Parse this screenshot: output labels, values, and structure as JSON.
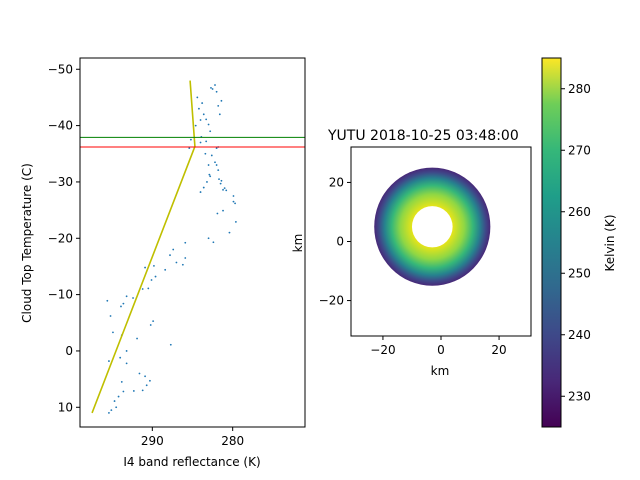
{
  "chart_data": [
    {
      "type": "scatter",
      "xlabel": "I4 band reflectance (K)",
      "ylabel": "Cloud Top Temperature (C)",
      "xlim": [
        299,
        271
      ],
      "ylim": [
        13.5,
        -52
      ],
      "x_tick_labels": [
        "290",
        "280"
      ],
      "x_ticks": [
        290,
        280
      ],
      "y_tick_labels": [
        "−50",
        "−40",
        "−30",
        "−20",
        "−10",
        "0",
        "10"
      ],
      "y_ticks": [
        -50,
        -40,
        -30,
        -20,
        -10,
        0,
        10
      ],
      "grid": false,
      "points": [
        [
          284.4,
          -45
        ],
        [
          284.2,
          -43
        ],
        [
          283.8,
          -44
        ],
        [
          284.0,
          -41
        ],
        [
          283.6,
          -42
        ],
        [
          284.6,
          -40
        ],
        [
          283.9,
          -38
        ],
        [
          285.2,
          -37.5
        ],
        [
          285.4,
          -36
        ],
        [
          283.4,
          -35
        ],
        [
          283.0,
          -33
        ],
        [
          282.8,
          -31
        ],
        [
          283.2,
          -30
        ],
        [
          283.6,
          -29
        ],
        [
          284.0,
          -28.2
        ],
        [
          279.9,
          -27.5
        ],
        [
          279.7,
          -26.2
        ],
        [
          281.0,
          -28.9
        ],
        [
          282.2,
          -33.5
        ],
        [
          282.0,
          -33
        ],
        [
          282.6,
          -34.7
        ],
        [
          282.0,
          -36.0
        ],
        [
          283.3,
          -37.2
        ],
        [
          280.8,
          -28.5
        ],
        [
          282.7,
          -46.7
        ],
        [
          282.2,
          -47.2
        ],
        [
          282.5,
          -46.5
        ],
        [
          281.4,
          -44.4
        ],
        [
          282.0,
          -46.0
        ],
        [
          281.8,
          -43.5
        ],
        [
          281.6,
          -42.0
        ],
        [
          282.8,
          -39.0
        ],
        [
          283.3,
          -41.1
        ],
        [
          283.0,
          -40.2
        ],
        [
          281.7,
          -30.5
        ],
        [
          281.5,
          -29.7
        ],
        [
          281.4,
          -30.2
        ],
        [
          281.8,
          -32.1
        ],
        [
          279.9,
          -26.5
        ],
        [
          281.2,
          -28.6
        ],
        [
          282.9,
          -31.3
        ],
        [
          281.8,
          -36.2
        ],
        [
          284.0,
          -37.0
        ],
        [
          279.6,
          -22.9
        ],
        [
          280.4,
          -21.0
        ],
        [
          281.2,
          -24.9
        ],
        [
          281.9,
          -24.4
        ],
        [
          282.4,
          -19.3
        ],
        [
          283.0,
          -20.0
        ],
        [
          285.9,
          -19.2
        ],
        [
          287.4,
          -18.0
        ],
        [
          287.8,
          -17.0
        ],
        [
          285.9,
          -16.5
        ],
        [
          286.2,
          -15.3
        ],
        [
          287.0,
          -15.7
        ],
        [
          288.4,
          -14.4
        ],
        [
          289.6,
          -13.2
        ],
        [
          290.1,
          -12.6
        ],
        [
          290.9,
          -14.8
        ],
        [
          289.8,
          -15.1
        ],
        [
          290.5,
          -11.1
        ],
        [
          291.2,
          -11.0
        ],
        [
          293.2,
          -9.7
        ],
        [
          292.4,
          -9.4
        ],
        [
          293.6,
          -8.4
        ],
        [
          293.9,
          -7.9
        ],
        [
          295.6,
          -8.9
        ],
        [
          295.2,
          -6.2
        ],
        [
          294.9,
          -3.3
        ],
        [
          293.8,
          -2.8
        ],
        [
          289.9,
          -5.3
        ],
        [
          290.2,
          -4.6
        ],
        [
          291.9,
          -2.2
        ],
        [
          287.7,
          -1.1
        ],
        [
          293.2,
          0.0
        ],
        [
          294.0,
          1.2
        ],
        [
          293.2,
          2.2
        ],
        [
          295.4,
          1.8
        ],
        [
          291.6,
          4.0
        ],
        [
          290.9,
          4.5
        ],
        [
          290.3,
          5.3
        ],
        [
          290.7,
          6.1
        ],
        [
          291.2,
          7.0
        ],
        [
          292.3,
          7.1
        ],
        [
          293.6,
          7.2
        ],
        [
          293.8,
          5.5
        ],
        [
          294.2,
          8.1
        ],
        [
          294.7,
          8.9
        ],
        [
          294.5,
          10.0
        ],
        [
          295.1,
          10.5
        ],
        [
          295.4,
          11.0
        ]
      ],
      "line_points": [
        [
          297.5,
          11
        ],
        [
          284.7,
          -36.3
        ],
        [
          285.3,
          -48
        ]
      ],
      "hlines": [
        {
          "y": -37.9,
          "color": "#008000"
        },
        {
          "y": -36.2,
          "color": "#ff0000"
        }
      ],
      "colors": {
        "points": "#1f77b4",
        "fit_line": "#bfbf00"
      }
    },
    {
      "type": "heatmap",
      "title": "YUTU 2018-10-25 03:48:00",
      "xlabel": "km",
      "ylabel": "km",
      "xlim": [
        -31,
        31
      ],
      "ylim": [
        -32,
        32
      ],
      "x_tick_labels": [
        "−20",
        "0",
        "20"
      ],
      "x_ticks": [
        -20,
        0,
        20
      ],
      "y_tick_labels": [
        "20",
        "0",
        "−20"
      ],
      "y_ticks": [
        20,
        0,
        -20
      ],
      "colormap": "viridis",
      "colorbar_label": "Kelvin (K)",
      "colorbar_range": [
        225,
        285
      ],
      "colorbar_tick_labels": [
        "280",
        "270",
        "260",
        "250",
        "240",
        "230"
      ],
      "colorbar_ticks": [
        280,
        270,
        260,
        250,
        240,
        230
      ],
      "storm_center_km": [
        -3,
        5
      ],
      "storm_radius_km": 20,
      "eye_center_km": [
        -3,
        5
      ],
      "eye_radius_km": 7
    }
  ]
}
